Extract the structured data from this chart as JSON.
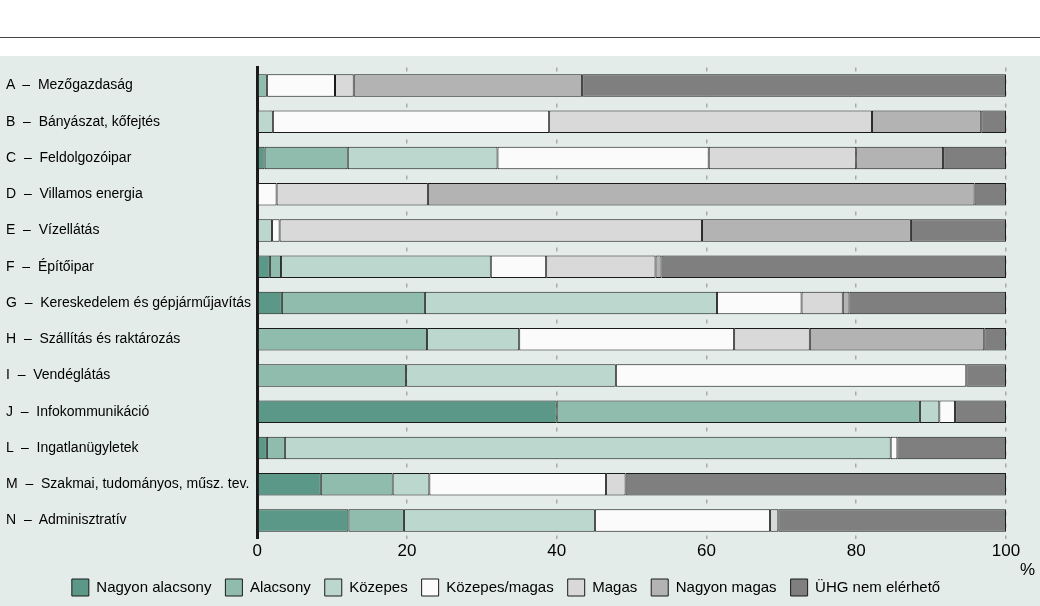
{
  "chart_data": {
    "type": "bar",
    "orientation": "horizontal",
    "stacked": true,
    "xlabel": "%",
    "categories": [
      "A  –  Mezőgazdaság",
      "B  –  Bányászat, kőfejtés",
      "C  –  Feldolgozóipar",
      "D  –  Villamos energia",
      "E  –  Vízellátás",
      "F  –  Építőipar",
      "G  –  Kereskedelem és gépjárműjavítás",
      "H  –  Szállítás és raktározás",
      "I  –  Vendéglátás",
      "J  –  Infokommunikáció",
      "L  –  Ingatlanügyletek",
      "M  –  Szakmai, tudományos, műsz. tev.",
      "N  –  Adminisztratív"
    ],
    "series": [
      {
        "name": "Nagyon alacsony",
        "color": "#5b9887",
        "values": [
          0,
          0,
          1.0,
          0,
          0,
          1.7,
          3.3,
          0,
          0,
          40.0,
          1.3,
          8.5,
          12.2
        ]
      },
      {
        "name": "Alacsony",
        "color": "#8fbcac",
        "values": [
          1.3,
          0,
          11.1,
          0,
          0,
          1.5,
          19.1,
          22.7,
          19.9,
          48.5,
          2.4,
          9.6,
          7.4
        ]
      },
      {
        "name": "Közepes",
        "color": "#bcd8ce",
        "values": [
          0,
          2.1,
          20.0,
          0,
          2.0,
          28.0,
          39.0,
          12.3,
          28.0,
          2.6,
          80.9,
          4.9,
          25.5
        ]
      },
      {
        "name": "Közepes/magas",
        "color": "#fbfbfb",
        "values": [
          9.1,
          36.9,
          28.2,
          2.6,
          1.0,
          7.4,
          11.3,
          28.7,
          46.8,
          2.1,
          0.9,
          23.6,
          23.4
        ]
      },
      {
        "name": "Magas",
        "color": "#d9d9d9",
        "values": [
          2.5,
          43.1,
          19.7,
          20.2,
          56.4,
          14.6,
          5.5,
          10.1,
          0,
          0,
          0,
          2.6,
          1.1
        ]
      },
      {
        "name": "Nagyon magas",
        "color": "#b3b3b3",
        "values": [
          30.5,
          14.6,
          11.6,
          73.0,
          27.9,
          0.8,
          0.9,
          23.3,
          0,
          0,
          0,
          0,
          0
        ]
      },
      {
        "name": "ÜHG nem elérhető",
        "color": "#7f7f7f",
        "values": [
          56.6,
          3.3,
          8.4,
          4.2,
          12.7,
          46.0,
          20.9,
          2.9,
          5.3,
          6.8,
          14.5,
          50.8,
          30.4
        ]
      }
    ],
    "xlim": [
      0,
      100
    ],
    "xticks": [
      0,
      20,
      40,
      60,
      80,
      100
    ],
    "grid": "x",
    "legend": "bottom"
  }
}
